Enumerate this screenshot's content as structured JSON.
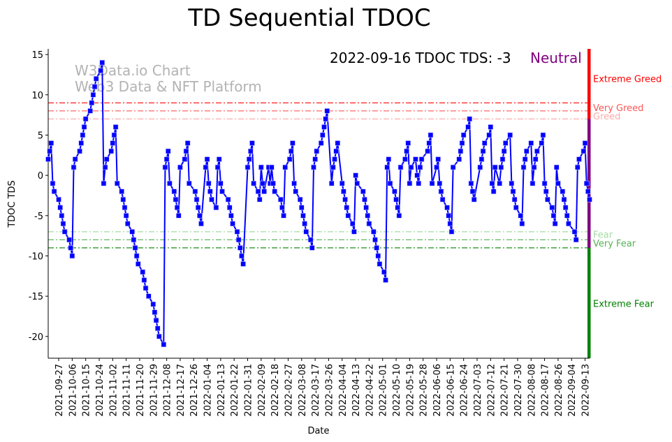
{
  "chart_data": {
    "type": "line",
    "title": "TD Sequential TDOC",
    "xlabel": "Date",
    "ylabel": "TDOC TDS",
    "ylim": [
      -22.7,
      15.7
    ],
    "xlim": [
      "2021-09-20",
      "2022-09-16"
    ],
    "yticks": [
      15,
      10,
      5,
      0,
      -5,
      -10,
      -15,
      -20
    ],
    "xticks": [
      "2021-09-27",
      "2021-10-06",
      "2021-10-15",
      "2021-10-24",
      "2021-11-02",
      "2021-11-11",
      "2021-11-20",
      "2021-11-29",
      "2021-12-08",
      "2021-12-17",
      "2021-12-26",
      "2022-01-04",
      "2022-01-13",
      "2022-01-22",
      "2022-01-31",
      "2022-02-09",
      "2022-02-18",
      "2022-02-27",
      "2022-03-08",
      "2022-03-17",
      "2022-03-26",
      "2022-04-04",
      "2022-04-13",
      "2022-04-22",
      "2022-05-01",
      "2022-05-10",
      "2022-05-19",
      "2022-05-28",
      "2022-06-06",
      "2022-06-15",
      "2022-06-24",
      "2022-07-03",
      "2022-07-12",
      "2022-07-21",
      "2022-07-30",
      "2022-08-08",
      "2022-08-17",
      "2022-08-26",
      "2022-09-04",
      "2022-09-13"
    ],
    "grid": false,
    "series": [
      {
        "name": "TDOC TDS",
        "color": "#0000ff",
        "marker": "square",
        "start_date": "2021-09-20",
        "end_date": "2022-09-16",
        "frequency": "trading days",
        "values": [
          2,
          3,
          4,
          -1,
          -2,
          -3,
          -4,
          -5,
          -6,
          -7,
          -8,
          -9,
          -10,
          1,
          2,
          3,
          4,
          5,
          6,
          7,
          8,
          9,
          10,
          11,
          12,
          13,
          14,
          -1,
          1,
          2,
          3,
          4,
          5,
          6,
          -1,
          -2,
          -3,
          -4,
          -5,
          -6,
          -7,
          -8,
          -9,
          -10,
          -11,
          -12,
          -13,
          -14,
          -15,
          -16,
          -17,
          -18,
          -19,
          -20,
          -21,
          1,
          2,
          3,
          -1,
          -2,
          -3,
          -4,
          -5,
          1,
          2,
          3,
          4,
          -1,
          -2,
          -3,
          -4,
          -5,
          -6,
          1,
          2,
          -1,
          -2,
          -3,
          -4,
          1,
          2,
          -1,
          -2,
          -3,
          -4,
          -5,
          -6,
          -7,
          -8,
          -9,
          -10,
          -11,
          1,
          2,
          3,
          4,
          -1,
          -2,
          -3,
          1,
          -1,
          -2,
          1,
          -1,
          1,
          -1,
          -2,
          -3,
          -4,
          -5,
          1,
          2,
          3,
          4,
          -1,
          -2,
          -3,
          -4,
          -5,
          -6,
          -7,
          -8,
          -9,
          1,
          2,
          3,
          4,
          5,
          6,
          7,
          8,
          -1,
          1,
          2,
          3,
          4,
          -1,
          -2,
          -3,
          -4,
          -5,
          -6,
          -7,
          0,
          -1,
          -2,
          -3,
          -4,
          -5,
          -6,
          -7,
          -8,
          -9,
          -10,
          -11,
          -12,
          -13,
          1,
          2,
          -1,
          -2,
          -3,
          -4,
          -5,
          1,
          2,
          3,
          4,
          -1,
          1,
          2,
          0,
          -1,
          1,
          2,
          3,
          4,
          5,
          -1,
          1,
          2,
          -1,
          -2,
          -3,
          -4,
          -5,
          -6,
          -7,
          1,
          2,
          3,
          4,
          5,
          6,
          7,
          -1,
          -2,
          -3,
          1,
          2,
          3,
          4,
          5,
          6,
          -1,
          -2,
          1,
          -1,
          1,
          2,
          3,
          4,
          5,
          -1,
          -2,
          -3,
          -4,
          -5,
          -6,
          1,
          2,
          3,
          4,
          -1,
          1,
          2,
          3,
          4,
          5,
          -1,
          -2,
          -3,
          -4,
          -5,
          -6,
          1,
          -1,
          -2,
          -3,
          -4,
          -5,
          -6,
          -7,
          -8,
          1,
          2,
          3,
          4,
          -1,
          -2,
          -3
        ]
      }
    ],
    "threshold_lines": [
      {
        "value": 9,
        "label": "Very Greed",
        "color": "#ff0000"
      },
      {
        "value": 8,
        "label": "",
        "color": "#ff5555"
      },
      {
        "value": 7,
        "label": "",
        "color": "#ffaaaa"
      },
      {
        "value": -7,
        "label": "",
        "color": "#a3dba3"
      },
      {
        "value": -8,
        "label": "",
        "color": "#55b055"
      },
      {
        "value": -9,
        "label": "",
        "color": "#007f00"
      }
    ],
    "zones": [
      {
        "label": "Extreme Greed",
        "from": 7,
        "to": 15.7,
        "color": "#ff0000",
        "text_color": "#ff0000",
        "label_at": 12
      },
      {
        "label": "Very Greed",
        "text_color": "#ff5555",
        "label_at": 8.4
      },
      {
        "label": "Greed",
        "text_color": "#ffaaaa",
        "label_at": 7.4
      },
      {
        "label": "Neutral",
        "from": -9,
        "to": 7,
        "color": "#800080"
      },
      {
        "label": "Fear",
        "text_color": "#a3dba3",
        "label_at": -7.3
      },
      {
        "label": "Very Fear",
        "text_color": "#55b055",
        "label_at": -8.4
      },
      {
        "label": "Extreme Fear",
        "from": -22.7,
        "to": -9,
        "color": "#008000",
        "text_color": "#008000",
        "label_at": -15.9
      }
    ],
    "annotation": {
      "text": "2022-09-16 TDOC TDS: -3",
      "status": "Neutral",
      "status_color": "#800080"
    },
    "watermark": [
      "W3Data.io Chart",
      "Web3 Data & NFT Platform"
    ]
  }
}
